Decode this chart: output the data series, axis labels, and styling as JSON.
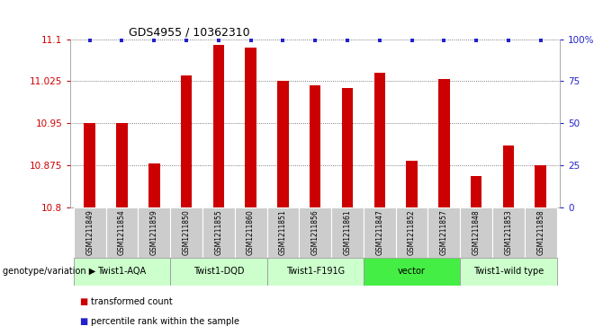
{
  "title": "GDS4955 / 10362310",
  "samples": [
    "GSM1211849",
    "GSM1211854",
    "GSM1211859",
    "GSM1211850",
    "GSM1211855",
    "GSM1211860",
    "GSM1211851",
    "GSM1211856",
    "GSM1211861",
    "GSM1211847",
    "GSM1211852",
    "GSM1211857",
    "GSM1211848",
    "GSM1211853",
    "GSM1211858"
  ],
  "bar_values": [
    10.95,
    10.95,
    10.878,
    11.035,
    11.09,
    11.085,
    11.025,
    11.018,
    11.013,
    11.04,
    10.882,
    11.028,
    10.855,
    10.91,
    10.875
  ],
  "ymin": 10.8,
  "ymax": 11.1,
  "yticks": [
    10.8,
    10.875,
    10.95,
    11.025,
    11.1
  ],
  "right_yticks": [
    0,
    25,
    50,
    75,
    100
  ],
  "right_ytick_labels": [
    "0",
    "25",
    "50",
    "75",
    "100%"
  ],
  "bar_color": "#cc0000",
  "dot_color": "#2222cc",
  "grid_color": "#555555",
  "groups": [
    {
      "label": "Twist1-AQA",
      "start": 0,
      "end": 3,
      "color": "#ccffcc"
    },
    {
      "label": "Twist1-DQD",
      "start": 3,
      "end": 6,
      "color": "#ccffcc"
    },
    {
      "label": "Twist1-F191G",
      "start": 6,
      "end": 9,
      "color": "#ccffcc"
    },
    {
      "label": "vector",
      "start": 9,
      "end": 12,
      "color": "#44ee44"
    },
    {
      "label": "Twist1-wild type",
      "start": 12,
      "end": 15,
      "color": "#ccffcc"
    }
  ],
  "sample_box_color": "#cccccc",
  "legend_items": [
    {
      "color": "#cc0000",
      "label": "transformed count"
    },
    {
      "color": "#2222cc",
      "label": "percentile rank within the sample"
    }
  ],
  "genotype_label": "genotype/variation"
}
